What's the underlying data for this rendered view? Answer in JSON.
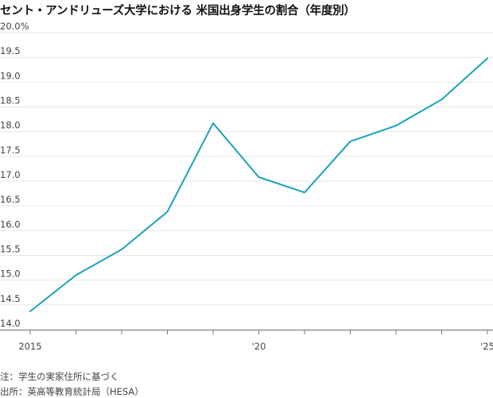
{
  "chart_data": {
    "type": "line",
    "title": "セント・アンドリューズ大学における 米国出身学生の割合（年度別）",
    "xlabel": "",
    "ylabel": "",
    "x": [
      2015,
      2016,
      2017,
      2018,
      2019,
      2020,
      2021,
      2022,
      2023,
      2024,
      2025
    ],
    "x_tick_values": [
      2015,
      2020,
      2025
    ],
    "x_tick_labels": [
      "2015",
      "'20",
      "'25"
    ],
    "y_ticks": [
      "20.0%",
      "19.5",
      "19.0",
      "18.5",
      "18.0",
      "17.5",
      "17.0",
      "16.5",
      "16.0",
      "15.5",
      "15.0",
      "14.5",
      "14.0"
    ],
    "ylim": [
      14.0,
      20.0
    ],
    "xlim": [
      2015,
      2025
    ],
    "grid": true,
    "series": [
      {
        "values": [
          14.37,
          15.1,
          15.62,
          16.38,
          18.17,
          17.08,
          16.77,
          17.8,
          18.12,
          18.65,
          19.48
        ],
        "color": "#1aa3b8"
      }
    ]
  },
  "notes": {
    "note1": "注：学生の実家住所に基づく",
    "source": "出所：英高等教育統計局（HESA）"
  }
}
